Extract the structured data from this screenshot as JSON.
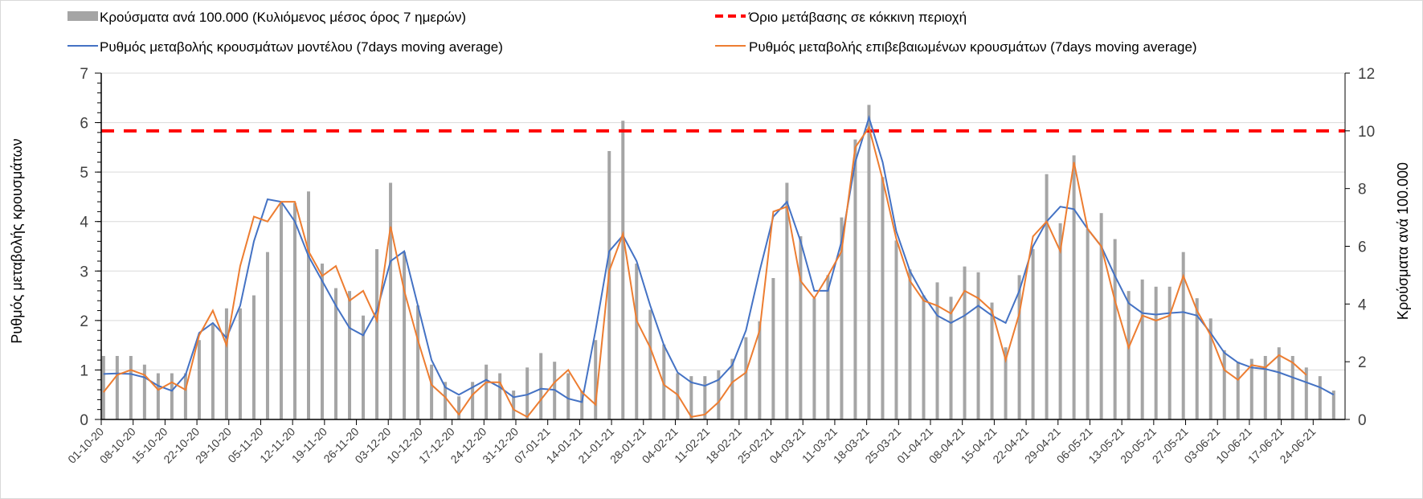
{
  "chart_data": {
    "type": "bar+line",
    "title": "",
    "legend": {
      "placement": "top",
      "items": [
        {
          "key": "bars",
          "label": "Κρούσματα ανά 100.000 (Κυλιόμενος μέσος όρος 7 ημερών)",
          "color": "#a5a5a5"
        },
        {
          "key": "threshold",
          "label": "Όριο μετάβασης σε κόκκινη περιοχή",
          "color": "#ff0000"
        },
        {
          "key": "model",
          "label": "Ρυθμός μεταβολής κρουσμάτων μοντέλου (7days moving average)",
          "color": "#4472c4"
        },
        {
          "key": "confirmed",
          "label": "Ρυθμός μεταβολής επιβεβαιωμένων κρουσμάτων (7days moving average)",
          "color": "#ed7d31"
        }
      ]
    },
    "ylabel_left": "Ρυθμός μεταβολής κρουσμάτων",
    "ylabel_right": "Κρούσματα ανά 100.000",
    "ylim_left": [
      0,
      7
    ],
    "yticks_left": [
      "0",
      "1",
      "2",
      "3",
      "4",
      "5",
      "6",
      "7"
    ],
    "ylim_right": [
      0,
      12
    ],
    "yticks_right": [
      "0",
      "2",
      "4",
      "6",
      "8",
      "10",
      "12"
    ],
    "grid": true,
    "x_total_days": 273,
    "x_tick_step_days": 7,
    "x_ticks": [
      "01-10-20",
      "08-10-20",
      "15-10-20",
      "22-10-20",
      "29-10-20",
      "05-11-20",
      "12-11-20",
      "19-11-20",
      "26-11-20",
      "03-12-20",
      "10-12-20",
      "17-12-20",
      "24-12-20",
      "31-12-20",
      "07-01-21",
      "14-01-21",
      "21-01-21",
      "28-01-21",
      "04-02-21",
      "11-02-21",
      "18-02-21",
      "25-02-21",
      "04-03-21",
      "11-03-21",
      "18-03-21",
      "25-03-21",
      "01-04-21",
      "08-04-21",
      "15-04-21",
      "22-04-21",
      "29-04-21",
      "06-05-21",
      "13-05-21",
      "20-05-21",
      "27-05-21",
      "03-06-21",
      "10-06-21",
      "17-06-21",
      "24-06-21"
    ],
    "sample_step_days": 3,
    "threshold_right_axis": 10,
    "series": [
      {
        "name": "bars",
        "axis": "right",
        "values": [
          2.2,
          2.2,
          2.2,
          1.9,
          1.6,
          1.6,
          1.6,
          2.75,
          3.3,
          3.85,
          3.85,
          4.3,
          5.8,
          7.5,
          7.5,
          7.9,
          5.4,
          4.55,
          4.45,
          3.6,
          5.9,
          8.2,
          5.8,
          3.95,
          1.9,
          1.3,
          0.8,
          1.3,
          1.9,
          1.6,
          1.0,
          1.8,
          2.3,
          2.0,
          1.6,
          1.0,
          2.75,
          9.3,
          10.35,
          5.4,
          3.8,
          2.6,
          1.6,
          1.5,
          1.5,
          1.7,
          2.1,
          2.85,
          3.4,
          4.9,
          8.2,
          6.35,
          4.2,
          5.0,
          7.0,
          9.7,
          10.9,
          8.4,
          6.2,
          5.2,
          4.3,
          4.75,
          4.25,
          5.3,
          5.1,
          4.05,
          2.5,
          5.0,
          5.9,
          8.5,
          6.8,
          9.15,
          6.6,
          7.15,
          6.25,
          4.45,
          4.85,
          4.6,
          4.6,
          5.8,
          4.2,
          3.5,
          2.4,
          2.0,
          2.1,
          2.2,
          2.5,
          2.2,
          1.8,
          1.5,
          1.0
        ]
      },
      {
        "name": "model",
        "axis": "left",
        "values": [
          0.92,
          0.93,
          0.92,
          0.85,
          0.68,
          0.58,
          0.9,
          1.75,
          1.95,
          1.65,
          2.3,
          3.6,
          4.45,
          4.4,
          4.0,
          3.3,
          2.8,
          2.3,
          1.85,
          1.7,
          2.2,
          3.2,
          3.4,
          2.3,
          1.2,
          0.65,
          0.5,
          0.65,
          0.8,
          0.65,
          0.45,
          0.5,
          0.62,
          0.6,
          0.42,
          0.35,
          1.8,
          3.4,
          3.72,
          3.2,
          2.3,
          1.5,
          0.95,
          0.75,
          0.68,
          0.8,
          1.1,
          1.8,
          3.0,
          4.1,
          4.4,
          3.6,
          2.6,
          2.6,
          3.6,
          5.2,
          6.1,
          5.2,
          3.8,
          3.0,
          2.5,
          2.1,
          1.95,
          2.1,
          2.3,
          2.1,
          1.95,
          2.6,
          3.5,
          4.0,
          4.3,
          4.25,
          3.85,
          3.5,
          2.9,
          2.35,
          2.15,
          2.12,
          2.15,
          2.17,
          2.1,
          1.75,
          1.35,
          1.15,
          1.05,
          1.02,
          0.95,
          0.85,
          0.75,
          0.65,
          0.5
        ]
      },
      {
        "name": "confirmed",
        "axis": "left",
        "values": [
          0.55,
          0.9,
          1.0,
          0.9,
          0.6,
          0.75,
          0.6,
          1.7,
          2.2,
          1.5,
          3.1,
          4.1,
          4.0,
          4.4,
          4.4,
          3.4,
          2.9,
          3.1,
          2.4,
          2.6,
          2.0,
          3.9,
          2.6,
          1.6,
          0.7,
          0.45,
          0.1,
          0.5,
          0.75,
          0.75,
          0.2,
          0.05,
          0.4,
          0.75,
          1.0,
          0.55,
          0.3,
          3.0,
          3.75,
          2.0,
          1.45,
          0.7,
          0.5,
          0.05,
          0.1,
          0.35,
          0.75,
          0.95,
          1.8,
          4.2,
          4.3,
          2.8,
          2.45,
          2.9,
          3.4,
          5.5,
          5.9,
          4.85,
          3.65,
          2.8,
          2.4,
          2.3,
          2.14,
          2.6,
          2.45,
          2.2,
          1.2,
          2.14,
          3.7,
          4.0,
          3.4,
          5.2,
          3.85,
          3.5,
          2.4,
          1.45,
          2.1,
          2.0,
          2.1,
          2.9,
          2.2,
          1.7,
          1.0,
          0.8,
          1.1,
          1.05,
          1.3,
          1.15,
          0.9,
          null,
          null
        ]
      }
    ]
  }
}
